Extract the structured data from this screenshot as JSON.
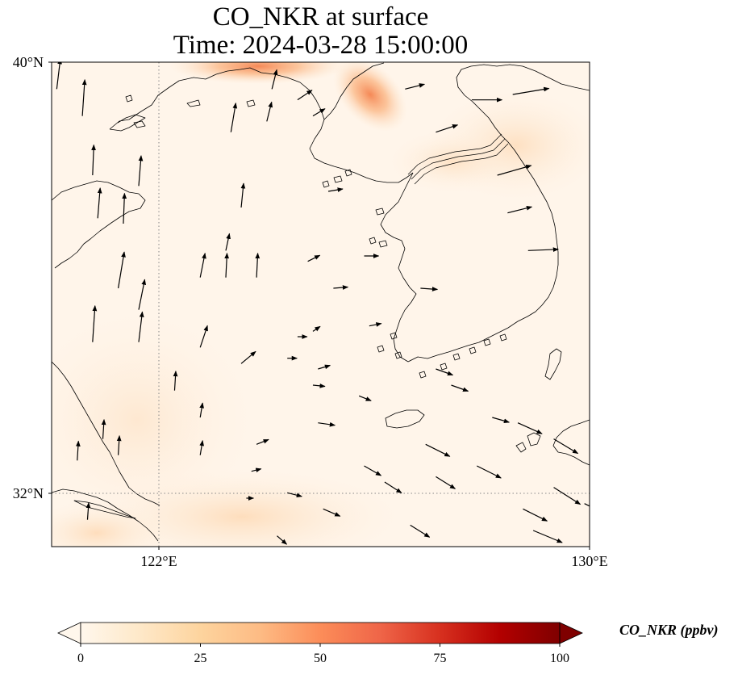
{
  "title": {
    "line1": "CO_NKR at surface",
    "line2": "Time: 2024-03-28 15:00:00"
  },
  "axes": {
    "lon_range": [
      119.5,
      130
    ],
    "lat_range": [
      31,
      40
    ],
    "x_ticks": [
      {
        "value": 122,
        "label": "122°E"
      },
      {
        "value": 130,
        "label": "130°E"
      }
    ],
    "y_ticks": [
      {
        "value": 40,
        "label": "40°N"
      },
      {
        "value": 32,
        "label": "32°N"
      }
    ],
    "gridlines": "dotted"
  },
  "colorbar": {
    "label": "CO_NKR (ppbv)",
    "colormap": "OrRd",
    "range": [
      0,
      100
    ],
    "ticks": [
      {
        "value": 0,
        "label": "0"
      },
      {
        "value": 25,
        "label": "25"
      },
      {
        "value": 50,
        "label": "50"
      },
      {
        "value": 75,
        "label": "75"
      },
      {
        "value": 100,
        "label": "100"
      }
    ],
    "extend": "both"
  },
  "concentration_hotspots": [
    {
      "lon": 123.0,
      "lat": 39.9,
      "value": 35
    },
    {
      "lon": 123.6,
      "lat": 40.0,
      "value": 30
    },
    {
      "lon": 125.0,
      "lat": 39.2,
      "value": 32
    },
    {
      "lon": 128.5,
      "lat": 39.3,
      "value": 8
    },
    {
      "lon": 121.0,
      "lat": 31.2,
      "value": 10
    },
    {
      "lon": 126.0,
      "lat": 37.6,
      "value": 6
    }
  ],
  "wind_vectors": [
    {
      "lon": 119.6,
      "lat": 39.5,
      "u": 0.3,
      "v": 2.5
    },
    {
      "lon": 120.1,
      "lat": 39.0,
      "u": 0.2,
      "v": 3.0
    },
    {
      "lon": 120.3,
      "lat": 37.9,
      "u": 0.1,
      "v": 2.5
    },
    {
      "lon": 120.4,
      "lat": 37.1,
      "u": 0.2,
      "v": 2.5
    },
    {
      "lon": 120.9,
      "lat": 37.0,
      "u": 0.1,
      "v": 2.5
    },
    {
      "lon": 121.2,
      "lat": 37.7,
      "u": 0.2,
      "v": 2.5
    },
    {
      "lon": 120.8,
      "lat": 35.8,
      "u": 0.5,
      "v": 3.0
    },
    {
      "lon": 121.2,
      "lat": 35.4,
      "u": 0.5,
      "v": 2.5
    },
    {
      "lon": 120.3,
      "lat": 34.8,
      "u": 0.2,
      "v": 3.0
    },
    {
      "lon": 121.2,
      "lat": 34.8,
      "u": 0.3,
      "v": 2.5
    },
    {
      "lon": 121.9,
      "lat": 33.9,
      "u": 0.1,
      "v": 1.6
    },
    {
      "lon": 120.0,
      "lat": 32.6,
      "u": 0.1,
      "v": 1.6
    },
    {
      "lon": 120.5,
      "lat": 33.0,
      "u": 0.1,
      "v": 1.6
    },
    {
      "lon": 120.8,
      "lat": 32.7,
      "u": 0.1,
      "v": 1.6
    },
    {
      "lon": 120.2,
      "lat": 31.5,
      "u": 0.1,
      "v": 1.4
    },
    {
      "lon": 122.4,
      "lat": 33.4,
      "u": 0.2,
      "v": 1.2
    },
    {
      "lon": 122.4,
      "lat": 32.7,
      "u": 0.2,
      "v": 1.2
    },
    {
      "lon": 122.4,
      "lat": 36.0,
      "u": 0.4,
      "v": 2.0
    },
    {
      "lon": 122.9,
      "lat": 36.0,
      "u": 0.1,
      "v": 2.0
    },
    {
      "lon": 123.5,
      "lat": 36.0,
      "u": 0.1,
      "v": 2.0
    },
    {
      "lon": 122.4,
      "lat": 34.7,
      "u": 0.6,
      "v": 1.8
    },
    {
      "lon": 123.2,
      "lat": 34.4,
      "u": 1.2,
      "v": 1.0
    },
    {
      "lon": 123.0,
      "lat": 38.7,
      "u": 0.4,
      "v": 2.4
    },
    {
      "lon": 123.2,
      "lat": 37.3,
      "u": 0.2,
      "v": 2.0
    },
    {
      "lon": 123.7,
      "lat": 38.9,
      "u": 0.4,
      "v": 1.6
    },
    {
      "lon": 123.8,
      "lat": 39.5,
      "u": 0.4,
      "v": 1.6
    },
    {
      "lon": 122.9,
      "lat": 36.5,
      "u": 0.3,
      "v": 1.4
    },
    {
      "lon": 123.3,
      "lat": 40.0,
      "u": 0.7,
      "v": 1.4
    },
    {
      "lon": 124.3,
      "lat": 39.3,
      "u": 1.2,
      "v": 0.8
    },
    {
      "lon": 124.6,
      "lat": 39.0,
      "u": 1.0,
      "v": 0.6
    },
    {
      "lon": 124.9,
      "lat": 37.6,
      "u": 1.2,
      "v": 0.2
    },
    {
      "lon": 124.5,
      "lat": 36.3,
      "u": 1.0,
      "v": 0.5
    },
    {
      "lon": 124.6,
      "lat": 35.0,
      "u": 0.6,
      "v": 0.4
    },
    {
      "lon": 124.6,
      "lat": 34.0,
      "u": 1.0,
      "v": -0.1
    },
    {
      "lon": 124.7,
      "lat": 33.3,
      "u": 1.4,
      "v": -0.2
    },
    {
      "lon": 125.0,
      "lat": 35.8,
      "u": 1.2,
      "v": 0.1
    },
    {
      "lon": 125.6,
      "lat": 36.4,
      "u": 1.2,
      "v": 0.0
    },
    {
      "lon": 125.7,
      "lat": 35.1,
      "u": 1.0,
      "v": 0.2
    },
    {
      "lon": 126.4,
      "lat": 39.5,
      "u": 1.6,
      "v": 0.4
    },
    {
      "lon": 127.0,
      "lat": 38.7,
      "u": 1.8,
      "v": 0.6
    },
    {
      "lon": 127.7,
      "lat": 39.3,
      "u": 2.5,
      "v": 0.0
    },
    {
      "lon": 128.5,
      "lat": 39.4,
      "u": 3.0,
      "v": 0.5
    },
    {
      "lon": 128.2,
      "lat": 37.9,
      "u": 2.8,
      "v": 0.8
    },
    {
      "lon": 128.4,
      "lat": 37.2,
      "u": 2.0,
      "v": 0.5
    },
    {
      "lon": 128.8,
      "lat": 36.5,
      "u": 2.5,
      "v": 0.1
    },
    {
      "lon": 126.7,
      "lat": 35.8,
      "u": 1.4,
      "v": -0.1
    },
    {
      "lon": 127.0,
      "lat": 34.3,
      "u": 1.4,
      "v": -0.5
    },
    {
      "lon": 127.3,
      "lat": 34.0,
      "u": 1.4,
      "v": -0.5
    },
    {
      "lon": 128.1,
      "lat": 33.4,
      "u": 1.4,
      "v": -0.4
    },
    {
      "lon": 128.6,
      "lat": 33.3,
      "u": 2.0,
      "v": -0.9
    },
    {
      "lon": 129.3,
      "lat": 33.0,
      "u": 2.0,
      "v": -1.2
    },
    {
      "lon": 129.3,
      "lat": 32.1,
      "u": 2.2,
      "v": -1.4
    },
    {
      "lon": 126.8,
      "lat": 32.9,
      "u": 2.0,
      "v": -1.0
    },
    {
      "lon": 127.0,
      "lat": 32.3,
      "u": 1.6,
      "v": -1.0
    },
    {
      "lon": 127.8,
      "lat": 32.5,
      "u": 2.0,
      "v": -1.0
    },
    {
      "lon": 128.7,
      "lat": 31.7,
      "u": 2.0,
      "v": -1.0
    },
    {
      "lon": 128.9,
      "lat": 31.3,
      "u": 2.4,
      "v": -1.0
    },
    {
      "lon": 129.9,
      "lat": 31.8,
      "u": 2.0,
      "v": -1.0
    },
    {
      "lon": 126.5,
      "lat": 31.4,
      "u": 1.6,
      "v": -1.0
    },
    {
      "lon": 126.0,
      "lat": 32.2,
      "u": 1.4,
      "v": -0.9
    },
    {
      "lon": 125.6,
      "lat": 32.5,
      "u": 1.4,
      "v": -0.8
    },
    {
      "lon": 124.8,
      "lat": 31.7,
      "u": 1.4,
      "v": -0.6
    },
    {
      "lon": 124.1,
      "lat": 32.0,
      "u": 1.2,
      "v": -0.3
    },
    {
      "lon": 123.9,
      "lat": 31.2,
      "u": 0.8,
      "v": -0.7
    },
    {
      "lon": 123.5,
      "lat": 32.9,
      "u": 1.0,
      "v": 0.4
    },
    {
      "lon": 123.4,
      "lat": 32.4,
      "u": 0.8,
      "v": 0.2
    },
    {
      "lon": 124.7,
      "lat": 34.3,
      "u": 1.0,
      "v": 0.3
    },
    {
      "lon": 124.1,
      "lat": 34.5,
      "u": 0.8,
      "v": 0.0
    },
    {
      "lon": 124.3,
      "lat": 34.9,
      "u": 0.8,
      "v": 0.0
    },
    {
      "lon": 123.3,
      "lat": 31.9,
      "u": 0.6,
      "v": 0.0
    },
    {
      "lon": 125.5,
      "lat": 33.8,
      "u": 1.0,
      "v": -0.4
    }
  ]
}
